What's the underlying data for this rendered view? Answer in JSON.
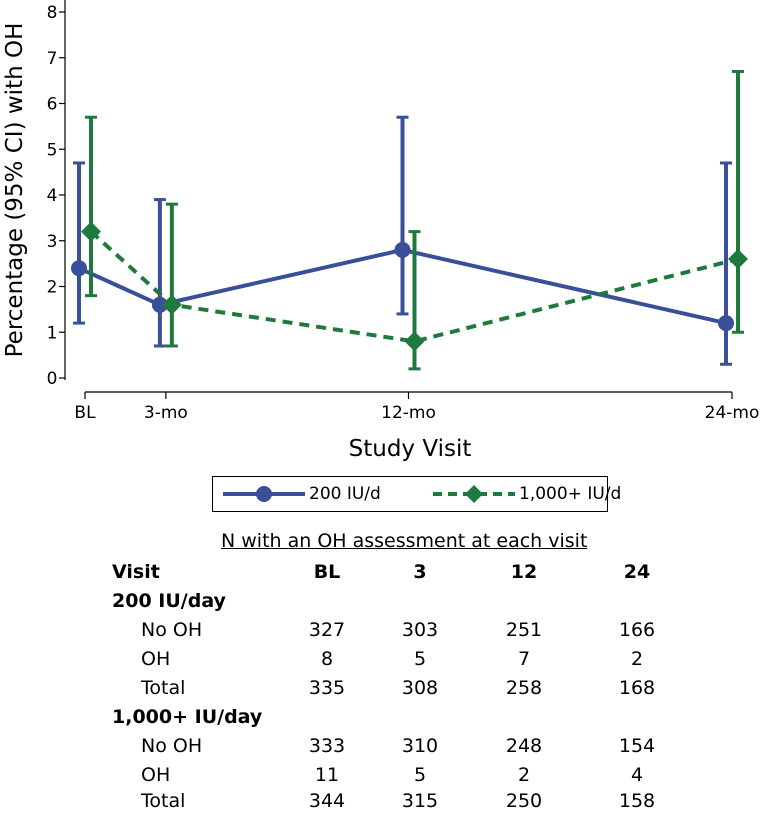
{
  "chart_data": {
    "type": "line",
    "title": "",
    "xlabel": "Study Visit",
    "ylabel": "Percentage (95% CI) with OH",
    "x_categories": [
      "BL",
      "3-mo",
      "12-mo",
      "24-mo"
    ],
    "x_months": [
      0,
      3,
      12,
      24
    ],
    "ylim": [
      0,
      8
    ],
    "yticks": [
      0,
      1,
      2,
      3,
      4,
      5,
      6,
      7,
      8
    ],
    "series": [
      {
        "name": "200 IU/d",
        "color": "#3a4f9a",
        "line_style": "solid",
        "marker": "circle",
        "values": [
          2.4,
          1.6,
          2.8,
          1.2
        ],
        "ci_low": [
          1.2,
          0.7,
          1.4,
          0.3
        ],
        "ci_high": [
          4.7,
          3.9,
          5.7,
          4.7
        ]
      },
      {
        "name": "1,000+ IU/d",
        "color": "#1e7a3c",
        "line_style": "dashed",
        "marker": "diamond",
        "values": [
          3.2,
          1.6,
          0.8,
          2.6
        ],
        "ci_low": [
          1.8,
          0.7,
          0.2,
          1.0
        ],
        "ci_high": [
          5.7,
          3.8,
          3.2,
          6.7
        ]
      }
    ]
  },
  "table": {
    "caption": "N with an OH assessment at each visit",
    "header": {
      "label": "Visit",
      "cols": [
        "BL",
        "3",
        "12",
        "24"
      ]
    },
    "groups": [
      {
        "name": "200 IU/day",
        "rows": [
          {
            "label": "No OH",
            "values": [
              "327",
              "303",
              "251",
              "166"
            ]
          },
          {
            "label": "OH",
            "values": [
              "8",
              "5",
              "7",
              "2"
            ]
          },
          {
            "label": "Total",
            "values": [
              "335",
              "308",
              "258",
              "168"
            ]
          }
        ]
      },
      {
        "name": "1,000+ IU/day",
        "rows": [
          {
            "label": "No OH",
            "values": [
              "333",
              "310",
              "248",
              "154"
            ]
          },
          {
            "label": "OH",
            "values": [
              "11",
              "5",
              "2",
              "4"
            ]
          },
          {
            "label": "Total",
            "values": [
              "344",
              "315",
              "250",
              "158"
            ]
          }
        ]
      }
    ]
  }
}
